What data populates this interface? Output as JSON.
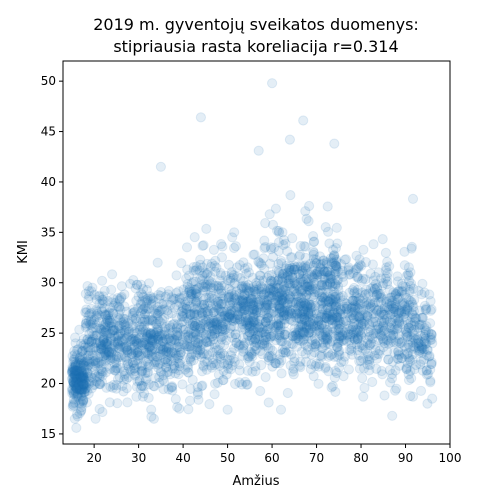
{
  "chart_data": {
    "type": "scatter",
    "title": "2019 m. gyventojų sveikatos duomenys:\nstipriausia rasta koreliacija r=0.314",
    "xlabel": "Amžius",
    "ylabel": "KMI",
    "xlim": [
      13,
      100
    ],
    "ylim": [
      14,
      52
    ],
    "x_ticks": [
      20,
      30,
      40,
      50,
      60,
      70,
      80,
      90,
      100
    ],
    "y_ticks": [
      15,
      20,
      25,
      30,
      35,
      40,
      45,
      50
    ],
    "grid": false,
    "legend": "none",
    "point_color": "#1f77b4",
    "point_alpha": 0.12,
    "correlation": 0.314,
    "n_points": 3000,
    "clusters": [
      {
        "x_range": [
          15,
          18
        ],
        "y_center": 20.5,
        "y_spread": 2.0,
        "weight": 0.07
      },
      {
        "x_range": [
          18,
          40
        ],
        "y_center": 24.0,
        "y_spread": 3.6,
        "weight": 0.25
      },
      {
        "x_range": [
          40,
          58
        ],
        "y_center": 26.5,
        "y_spread": 4.2,
        "weight": 0.22
      },
      {
        "x_range": [
          58,
          75
        ],
        "y_center": 28.0,
        "y_spread": 4.6,
        "weight": 0.26
      },
      {
        "x_range": [
          75,
          92
        ],
        "y_center": 26.5,
        "y_spread": 4.0,
        "weight": 0.17
      },
      {
        "x_range": [
          92,
          96
        ],
        "y_center": 24.5,
        "y_spread": 3.0,
        "weight": 0.03
      }
    ],
    "outliers": [
      {
        "x": 60,
        "y": 49.8
      },
      {
        "x": 44,
        "y": 46.4
      },
      {
        "x": 67,
        "y": 46.1
      },
      {
        "x": 64,
        "y": 44.2
      },
      {
        "x": 74,
        "y": 43.8
      },
      {
        "x": 57,
        "y": 43.1
      },
      {
        "x": 35,
        "y": 41.5
      },
      {
        "x": 16,
        "y": 15.6
      },
      {
        "x": 96,
        "y": 18.5
      },
      {
        "x": 87,
        "y": 16.8
      },
      {
        "x": 62,
        "y": 17.4
      },
      {
        "x": 50,
        "y": 17.4
      }
    ]
  }
}
